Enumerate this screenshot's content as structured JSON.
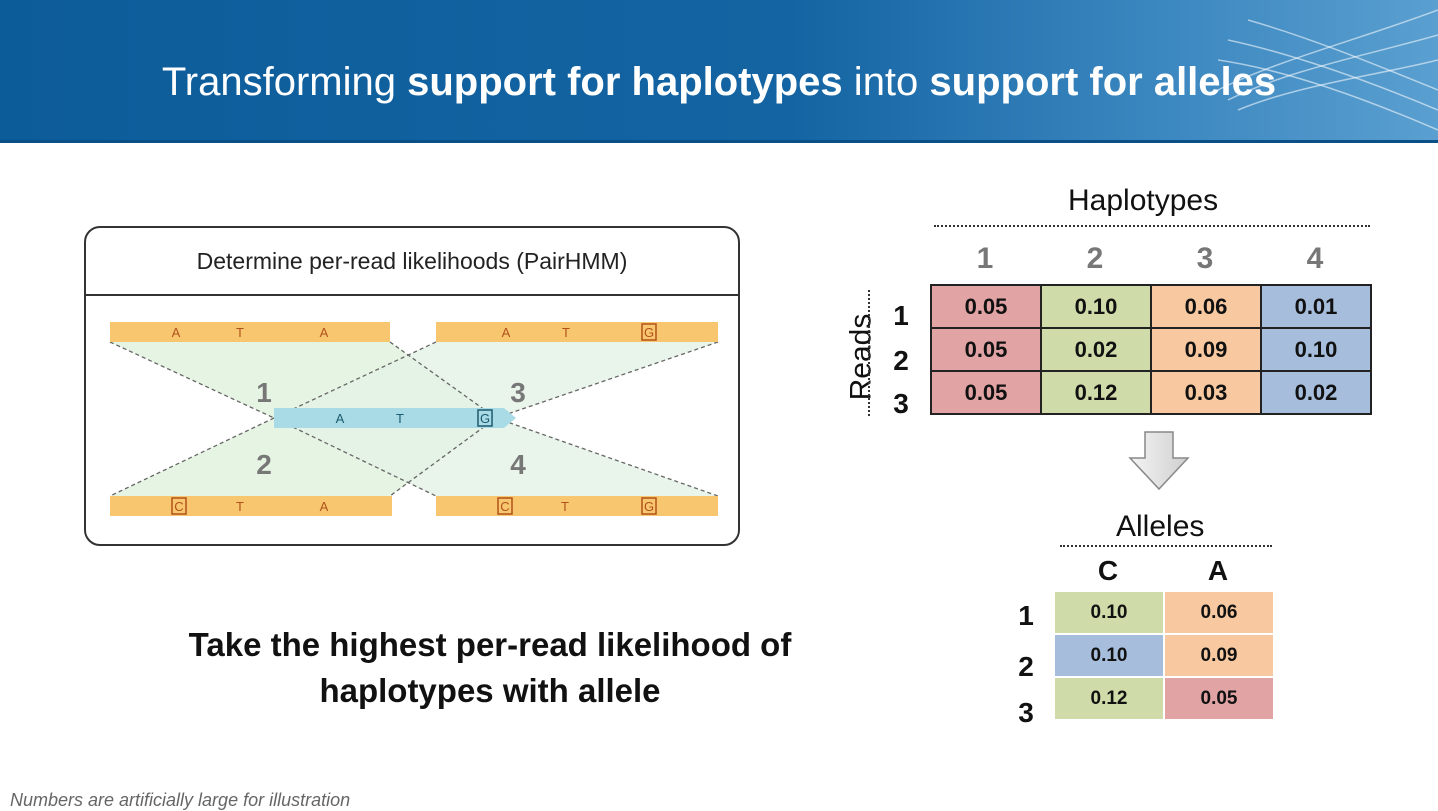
{
  "title": {
    "part1": "Transforming ",
    "part2": "support for haplotypes",
    "part3": " into ",
    "part4": "support for alleles"
  },
  "panel": {
    "heading": "Determine per-read likelihoods (PairHMM)",
    "top_left_read": [
      "A",
      "T",
      "A"
    ],
    "top_right_read": [
      "A",
      "T",
      "G"
    ],
    "middle_read": [
      "A",
      "T",
      "G"
    ],
    "bottom_left_read": [
      "C",
      "T",
      "A"
    ],
    "bottom_right_read": [
      "C",
      "T",
      "G"
    ],
    "region_labels": [
      "1",
      "3",
      "2",
      "4"
    ]
  },
  "caption": {
    "line1": "Take the highest per-read likelihood of",
    "line2": "haplotypes with allele"
  },
  "footnote": "Numbers are artificially large for illustration",
  "haplotypes": {
    "label": "Haplotypes",
    "columns": [
      "1",
      "2",
      "3",
      "4"
    ],
    "reads_label": "Reads",
    "rows": [
      "1",
      "2",
      "3"
    ],
    "values": [
      [
        "0.05",
        "0.10",
        "0.06",
        "0.01"
      ],
      [
        "0.05",
        "0.02",
        "0.09",
        "0.10"
      ],
      [
        "0.05",
        "0.12",
        "0.03",
        "0.02"
      ]
    ],
    "column_colors": [
      "#e1a3a3",
      "#cfdcaa",
      "#f8c9a0",
      "#a6bedc"
    ]
  },
  "alleles": {
    "label": "Alleles",
    "columns": [
      "C",
      "A"
    ],
    "rows": [
      "1",
      "2",
      "3"
    ],
    "values": [
      [
        "0.10",
        "0.06"
      ],
      [
        "0.10",
        "0.09"
      ],
      [
        "0.12",
        "0.05"
      ]
    ],
    "cell_colors": [
      [
        "#cfdcaa",
        "#f8c9a0"
      ],
      [
        "#a6bedc",
        "#f8c9a0"
      ],
      [
        "#cfdcaa",
        "#e1a3a3"
      ]
    ]
  }
}
